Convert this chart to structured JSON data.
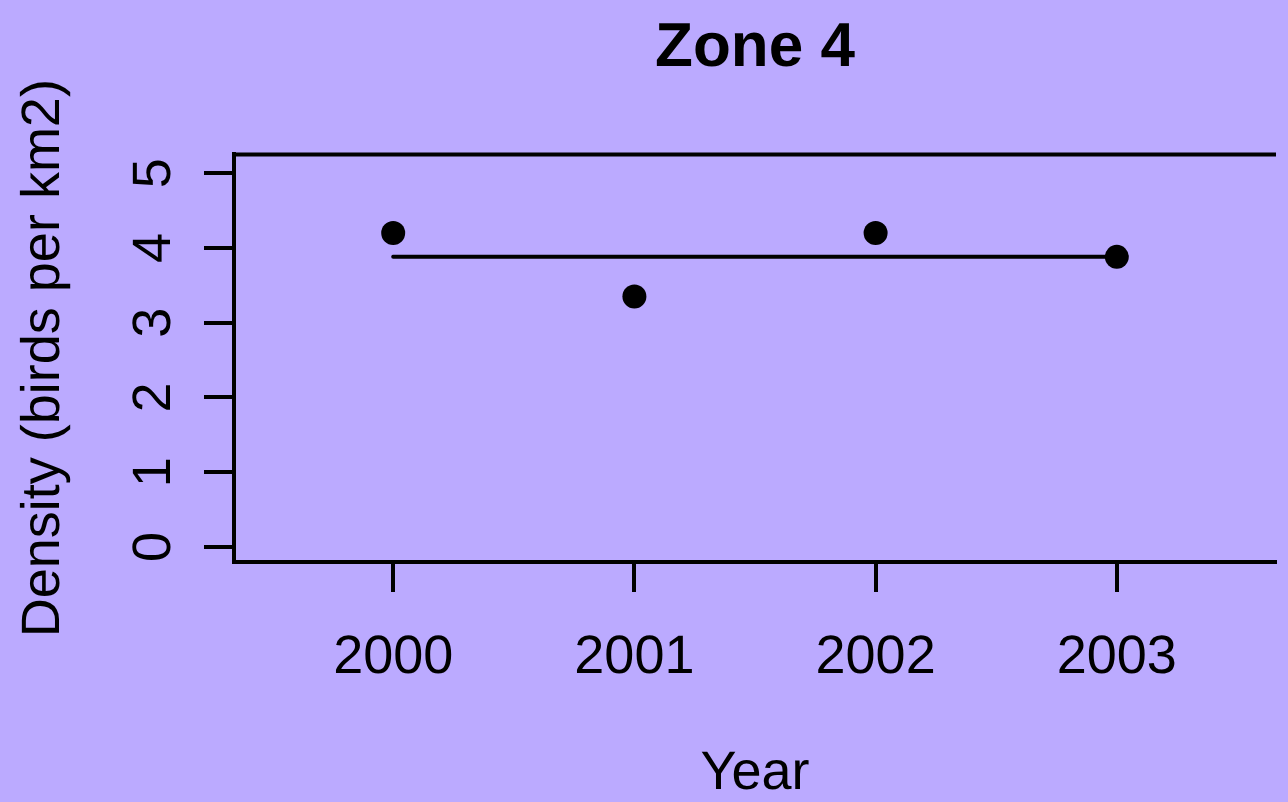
{
  "chart_data": {
    "type": "scatter",
    "title": "Zone 4",
    "xlabel": "Year",
    "ylabel": "Density (birds per km2)",
    "x": [
      2000,
      2001,
      2002,
      2003
    ],
    "series": [
      {
        "type": "scatter",
        "color": "#000000",
        "values": [
          4.2,
          3.35,
          4.2,
          3.88
        ]
      },
      {
        "type": "line",
        "x": [
          2000,
          2003
        ],
        "color": "#000000",
        "values": [
          3.88,
          3.88
        ],
        "marker": "none"
      }
    ],
    "xlim": [
      1999.34,
      2003.66
    ],
    "ylim": [
      -0.2,
      5.25
    ],
    "xticks": [
      2000,
      2001,
      2002,
      2003
    ],
    "yticks": [
      0,
      1,
      2,
      3,
      4,
      5
    ],
    "grid": false,
    "legend": false,
    "marker": "circle"
  }
}
